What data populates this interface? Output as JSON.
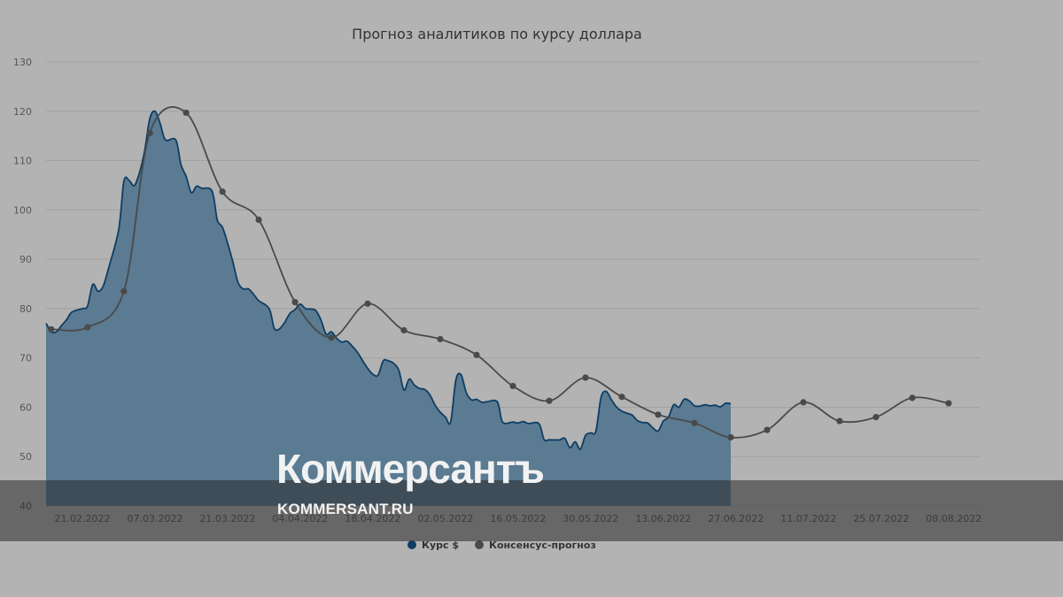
{
  "chart_data": {
    "type": "area",
    "title": "Прогноз аналитиков по курсу доллара",
    "ylim": [
      40,
      130
    ],
    "yticks": [
      40,
      50,
      60,
      70,
      80,
      90,
      100,
      110,
      120,
      130
    ],
    "xlim": [
      "2022-02-14",
      "2022-08-13"
    ],
    "xticks": [
      "21.02.2022",
      "07.03.2022",
      "21.03.2022",
      "04.04.2022",
      "18.04.2022",
      "02.05.2022",
      "16.05.2022",
      "30.05.2022",
      "13.06.2022",
      "27.06.2022",
      "11.07.2022",
      "25.07.2022",
      "08.08.2022"
    ],
    "grid": true,
    "legend_position": "bottom-center",
    "series": [
      {
        "name": "Курс $",
        "kind": "area",
        "color": "#0f3d63",
        "fill": "#5a7b92",
        "points": [
          [
            "2022-02-14",
            77.0
          ],
          [
            "2022-02-15",
            75.3
          ],
          [
            "2022-02-16",
            75.3
          ],
          [
            "2022-02-17",
            76.6
          ],
          [
            "2022-02-18",
            77.8
          ],
          [
            "2022-02-19",
            79.3
          ],
          [
            "2022-02-21",
            80.0
          ],
          [
            "2022-02-22",
            80.5
          ],
          [
            "2022-02-23",
            84.9
          ],
          [
            "2022-02-24",
            83.5
          ],
          [
            "2022-02-25",
            84.5
          ],
          [
            "2022-02-26",
            88.0
          ],
          [
            "2022-02-28",
            96.0
          ],
          [
            "2022-03-01",
            105.8
          ],
          [
            "2022-03-02",
            106.0
          ],
          [
            "2022-03-03",
            104.9
          ],
          [
            "2022-03-04",
            107.5
          ],
          [
            "2022-03-05",
            112.0
          ],
          [
            "2022-03-06",
            118.5
          ],
          [
            "2022-03-07",
            120.0
          ],
          [
            "2022-03-08",
            117.5
          ],
          [
            "2022-03-09",
            114.2
          ],
          [
            "2022-03-11",
            114.2
          ],
          [
            "2022-03-12",
            109.2
          ],
          [
            "2022-03-13",
            106.8
          ],
          [
            "2022-03-14",
            103.5
          ],
          [
            "2022-03-15",
            104.8
          ],
          [
            "2022-03-16",
            104.4
          ],
          [
            "2022-03-18",
            103.8
          ],
          [
            "2022-03-19",
            98.0
          ],
          [
            "2022-03-20",
            96.5
          ],
          [
            "2022-03-21",
            93.3
          ],
          [
            "2022-03-22",
            89.5
          ],
          [
            "2022-03-23",
            85.3
          ],
          [
            "2022-03-24",
            84.0
          ],
          [
            "2022-03-25",
            84.0
          ],
          [
            "2022-03-26",
            82.9
          ],
          [
            "2022-03-27",
            81.6
          ],
          [
            "2022-03-29",
            80.0
          ],
          [
            "2022-03-30",
            76.0
          ],
          [
            "2022-03-31",
            75.9
          ],
          [
            "2022-04-01",
            77.2
          ],
          [
            "2022-04-02",
            79.0
          ],
          [
            "2022-04-03",
            79.8
          ],
          [
            "2022-04-04",
            80.9
          ],
          [
            "2022-04-05",
            80.0
          ],
          [
            "2022-04-06",
            79.9
          ],
          [
            "2022-04-07",
            79.6
          ],
          [
            "2022-04-08",
            77.7
          ],
          [
            "2022-04-09",
            74.8
          ],
          [
            "2022-04-10",
            75.3
          ],
          [
            "2022-04-11",
            74.0
          ],
          [
            "2022-04-12",
            73.2
          ],
          [
            "2022-04-13",
            73.4
          ],
          [
            "2022-04-14",
            72.4
          ],
          [
            "2022-04-15",
            71.2
          ],
          [
            "2022-04-16",
            69.5
          ],
          [
            "2022-04-17",
            67.9
          ],
          [
            "2022-04-18",
            66.7
          ],
          [
            "2022-04-19",
            66.5
          ],
          [
            "2022-04-20",
            69.4
          ],
          [
            "2022-04-21",
            69.4
          ],
          [
            "2022-04-22",
            68.9
          ],
          [
            "2022-04-23",
            67.5
          ],
          [
            "2022-04-24",
            63.5
          ],
          [
            "2022-04-25",
            65.7
          ],
          [
            "2022-04-26",
            64.5
          ],
          [
            "2022-04-27",
            63.8
          ],
          [
            "2022-04-28",
            63.6
          ],
          [
            "2022-04-29",
            62.5
          ],
          [
            "2022-04-30",
            60.4
          ],
          [
            "2022-05-01",
            59.0
          ],
          [
            "2022-05-02",
            58.0
          ],
          [
            "2022-05-03",
            57.0
          ],
          [
            "2022-05-04",
            65.5
          ],
          [
            "2022-05-05",
            66.6
          ],
          [
            "2022-05-06",
            63.0
          ],
          [
            "2022-05-07",
            61.5
          ],
          [
            "2022-05-08",
            61.6
          ],
          [
            "2022-05-09",
            61.0
          ],
          [
            "2022-05-10",
            61.1
          ],
          [
            "2022-05-12",
            61.1
          ],
          [
            "2022-05-13",
            57.0
          ],
          [
            "2022-05-15",
            57.0
          ],
          [
            "2022-05-16",
            56.8
          ],
          [
            "2022-05-17",
            57.1
          ],
          [
            "2022-05-18",
            56.7
          ],
          [
            "2022-05-20",
            56.7
          ],
          [
            "2022-05-21",
            53.5
          ],
          [
            "2022-05-22",
            53.4
          ],
          [
            "2022-05-24",
            53.4
          ],
          [
            "2022-05-25",
            53.7
          ],
          [
            "2022-05-26",
            51.8
          ],
          [
            "2022-05-27",
            53.0
          ],
          [
            "2022-05-28",
            51.5
          ],
          [
            "2022-05-29",
            54.3
          ],
          [
            "2022-05-30",
            54.8
          ],
          [
            "2022-05-31",
            55.2
          ],
          [
            "2022-06-01",
            62.0
          ],
          [
            "2022-06-02",
            63.2
          ],
          [
            "2022-06-03",
            61.5
          ],
          [
            "2022-06-04",
            60.0
          ],
          [
            "2022-06-05",
            59.2
          ],
          [
            "2022-06-06",
            58.8
          ],
          [
            "2022-06-07",
            58.4
          ],
          [
            "2022-06-08",
            57.3
          ],
          [
            "2022-06-09",
            56.9
          ],
          [
            "2022-06-10",
            56.8
          ],
          [
            "2022-06-11",
            55.8
          ],
          [
            "2022-06-12",
            55.2
          ],
          [
            "2022-06-13",
            57.2
          ],
          [
            "2022-06-14",
            58.0
          ],
          [
            "2022-06-15",
            60.5
          ],
          [
            "2022-06-16",
            60.0
          ],
          [
            "2022-06-17",
            61.6
          ],
          [
            "2022-06-18",
            61.3
          ],
          [
            "2022-06-19",
            60.3
          ],
          [
            "2022-06-20",
            60.2
          ],
          [
            "2022-06-21",
            60.5
          ],
          [
            "2022-06-22",
            60.3
          ],
          [
            "2022-06-23",
            60.4
          ],
          [
            "2022-06-24",
            60.1
          ],
          [
            "2022-06-25",
            60.8
          ],
          [
            "2022-06-26",
            60.7
          ]
        ]
      },
      {
        "name": "Консенсус-прогноз",
        "kind": "line",
        "color": "#4a4a4a",
        "points": [
          [
            "2022-02-15",
            75.8
          ],
          [
            "2022-02-22",
            76.2
          ],
          [
            "2022-02-29",
            83.5
          ],
          [
            "2022-03-06",
            115.6
          ],
          [
            "2022-03-13",
            119.7
          ],
          [
            "2022-03-20",
            103.7
          ],
          [
            "2022-03-27",
            98.0
          ],
          [
            "2022-04-03",
            81.3
          ],
          [
            "2022-04-10",
            74.1
          ],
          [
            "2022-04-17",
            81.0
          ],
          [
            "2022-04-24",
            75.6
          ],
          [
            "2022-05-01",
            73.8
          ],
          [
            "2022-05-08",
            70.6
          ],
          [
            "2022-05-15",
            64.3
          ],
          [
            "2022-05-22",
            61.3
          ],
          [
            "2022-05-29",
            66.0
          ],
          [
            "2022-06-05",
            62.1
          ],
          [
            "2022-06-12",
            58.5
          ],
          [
            "2022-06-19",
            56.8
          ],
          [
            "2022-06-26",
            53.9
          ],
          [
            "2022-07-03",
            55.4
          ],
          [
            "2022-07-10",
            61.0
          ],
          [
            "2022-07-17",
            57.2
          ],
          [
            "2022-07-24",
            58.0
          ],
          [
            "2022-07-31",
            61.9
          ],
          [
            "2022-08-07",
            60.8
          ]
        ]
      }
    ]
  },
  "watermark": {
    "brand": "Коммерсантъ",
    "site": "KOMMERSANT.RU"
  }
}
